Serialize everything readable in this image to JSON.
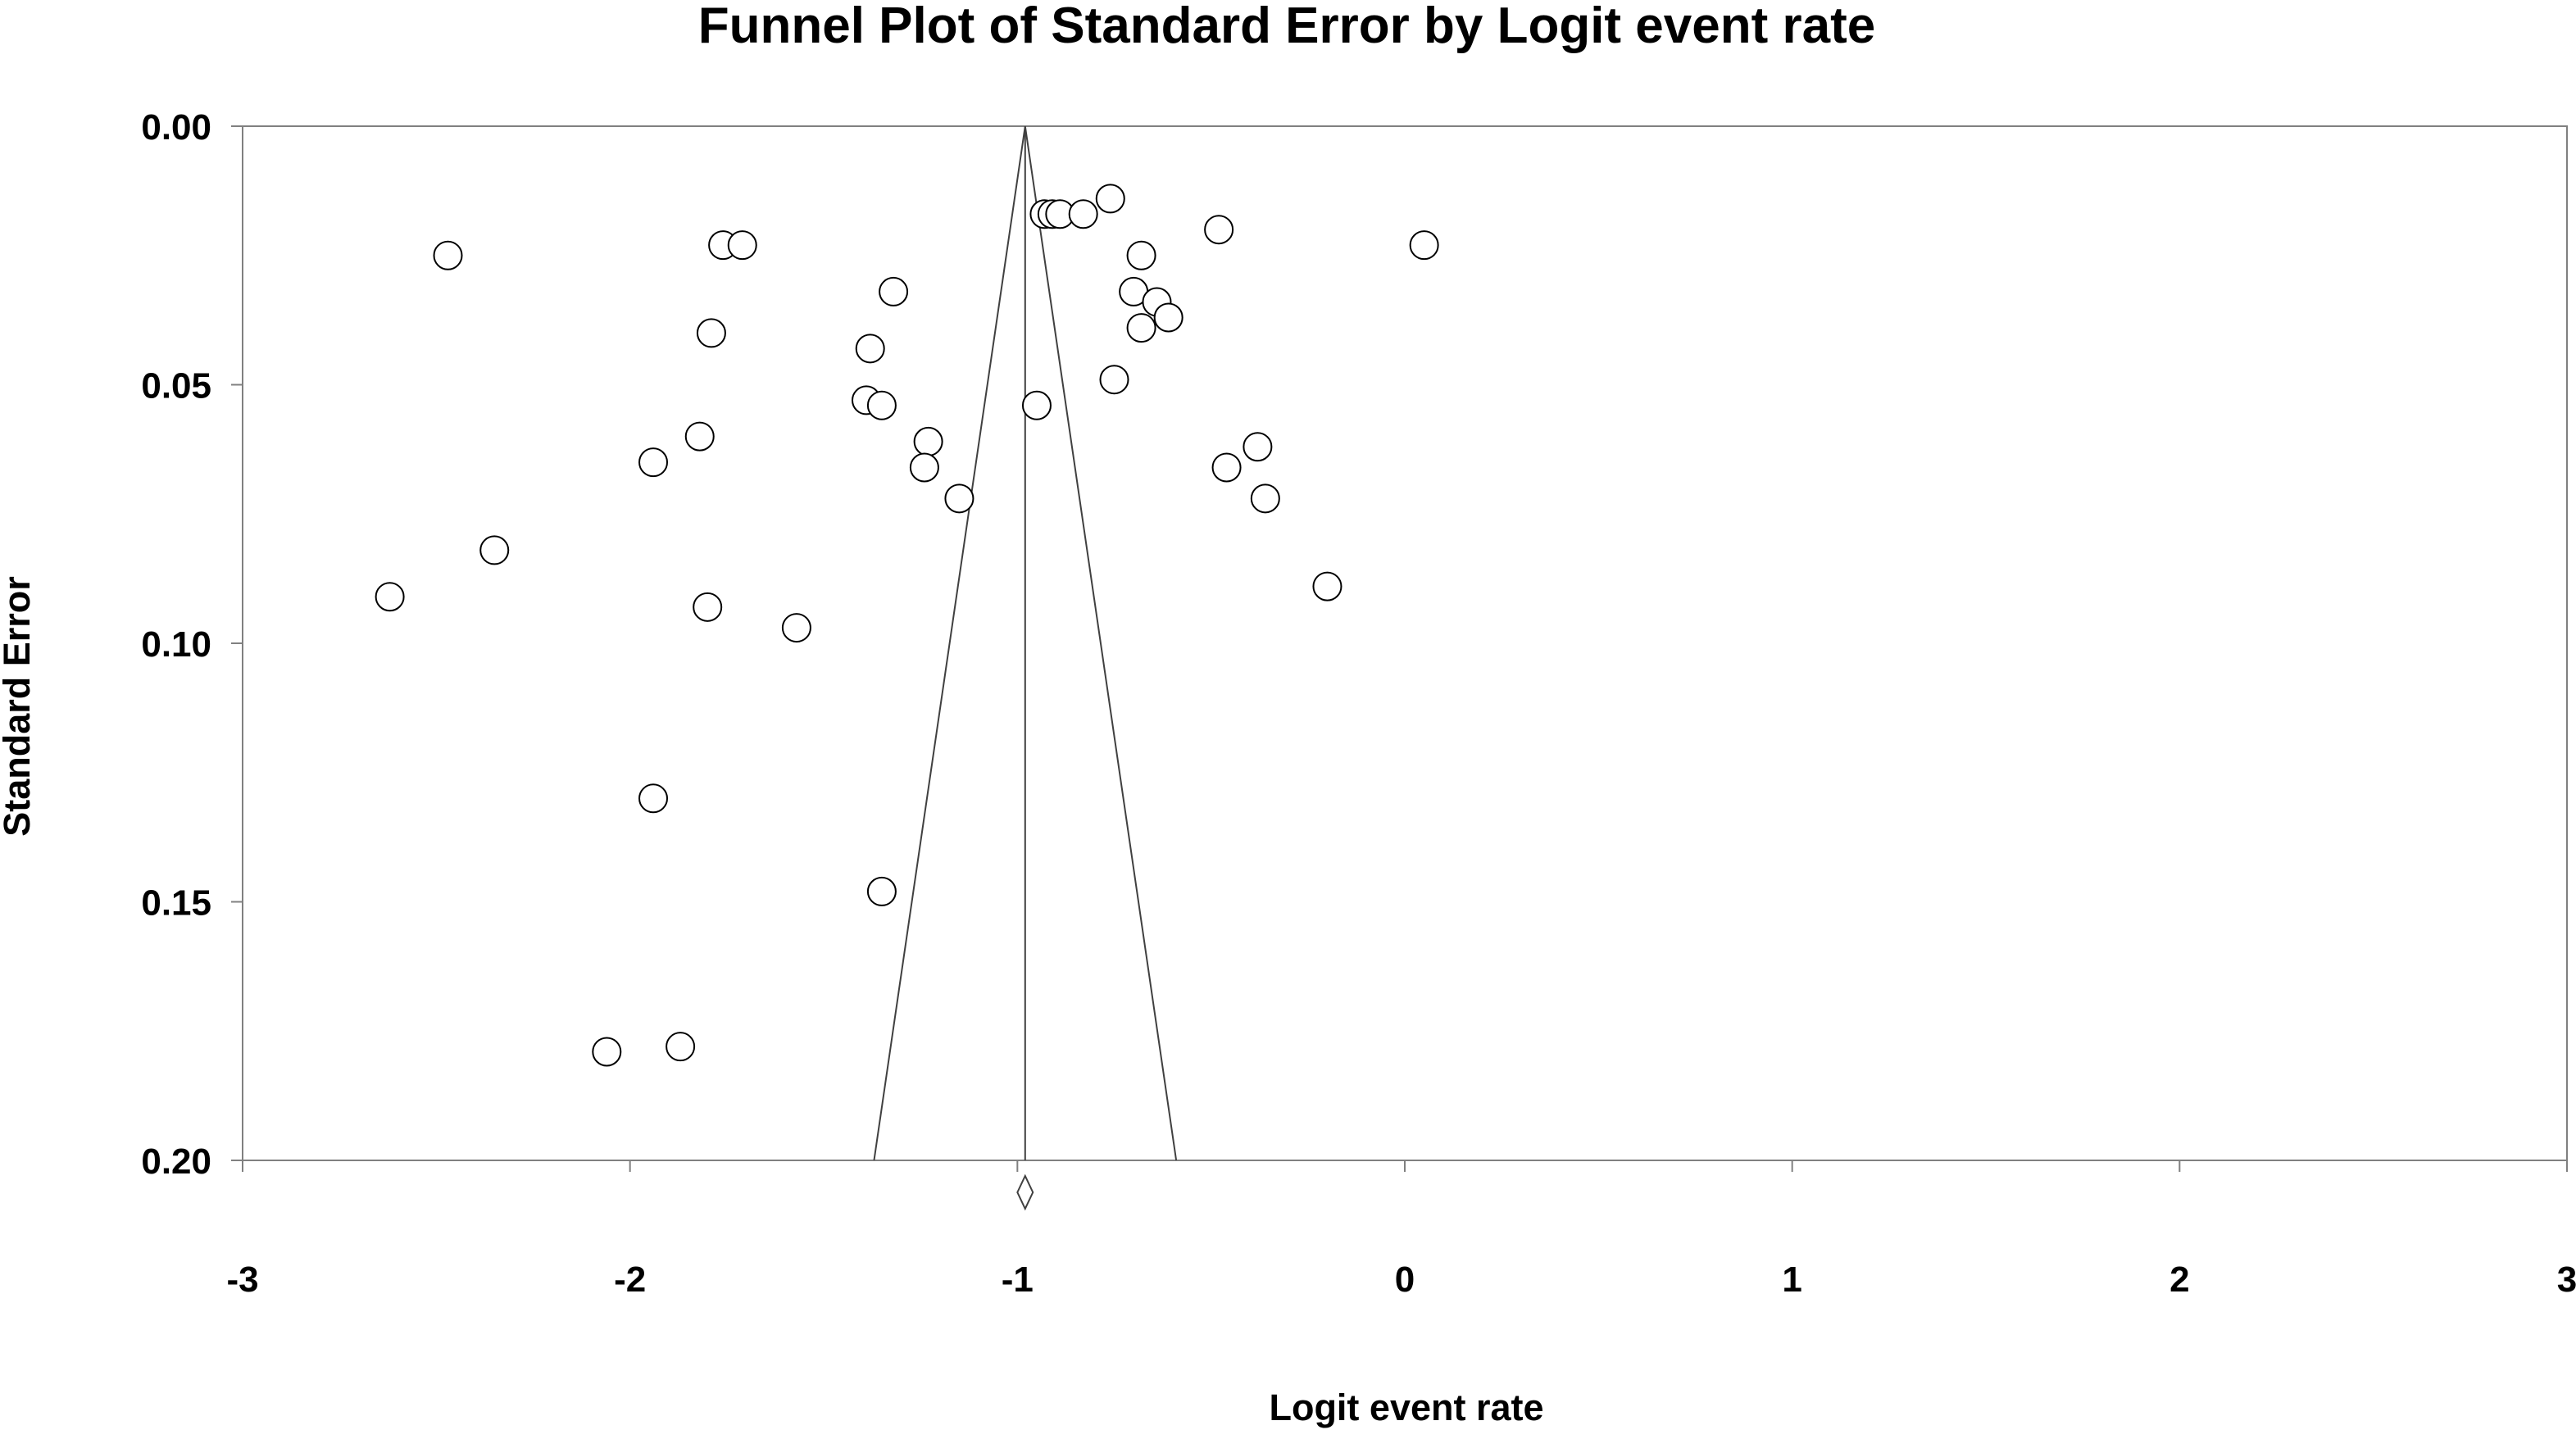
{
  "colors": {
    "background": "#ffffff",
    "axis": "#808080",
    "funnel_line": "#404040",
    "marker_stroke": "#000000",
    "marker_fill": "#ffffff",
    "text": "#000000"
  },
  "chart_data": {
    "type": "scatter",
    "title": "Funnel Plot of Standard Error by Logit event rate",
    "xlabel": "Logit event rate",
    "ylabel": "Standard Error",
    "xlim": [
      -3,
      3
    ],
    "ylim": [
      0.2,
      0
    ],
    "y_axis_inverted": true,
    "grid": false,
    "legend": "none",
    "x_ticks": [
      -3,
      -2,
      -1,
      0,
      1,
      2,
      3
    ],
    "x_tick_labels": [
      "-3",
      "-2",
      "-1",
      "0",
      "1",
      "2",
      "3"
    ],
    "y_ticks": [
      0.0,
      0.05,
      0.1,
      0.15,
      0.2
    ],
    "y_tick_labels": [
      "0.00",
      "0.05",
      "0.10",
      "0.15",
      "0.20"
    ],
    "pooled_estimate": -0.98,
    "funnel_bottom_x": [
      -1.37,
      -0.59
    ],
    "funnel_bottom_se": 0.2,
    "summary_diamond": {
      "center": -0.98,
      "lower": -1.0,
      "upper": -0.96
    },
    "points": [
      {
        "x": -2.62,
        "y": 0.091
      },
      {
        "x": -2.47,
        "y": 0.025
      },
      {
        "x": -2.35,
        "y": 0.082
      },
      {
        "x": -2.06,
        "y": 0.179
      },
      {
        "x": -1.94,
        "y": 0.065
      },
      {
        "x": -1.94,
        "y": 0.13
      },
      {
        "x": -1.87,
        "y": 0.178
      },
      {
        "x": -1.82,
        "y": 0.06
      },
      {
        "x": -1.79,
        "y": 0.04
      },
      {
        "x": -1.8,
        "y": 0.093
      },
      {
        "x": -1.76,
        "y": 0.023
      },
      {
        "x": -1.71,
        "y": 0.023
      },
      {
        "x": -1.57,
        "y": 0.097
      },
      {
        "x": -1.39,
        "y": 0.053
      },
      {
        "x": -1.38,
        "y": 0.043
      },
      {
        "x": -1.35,
        "y": 0.054
      },
      {
        "x": -1.35,
        "y": 0.148
      },
      {
        "x": -1.32,
        "y": 0.032
      },
      {
        "x": -1.23,
        "y": 0.061
      },
      {
        "x": -1.24,
        "y": 0.066
      },
      {
        "x": -1.15,
        "y": 0.072
      },
      {
        "x": -0.95,
        "y": 0.054
      },
      {
        "x": -0.93,
        "y": 0.017
      },
      {
        "x": -0.91,
        "y": 0.017
      },
      {
        "x": -0.89,
        "y": 0.017
      },
      {
        "x": -0.83,
        "y": 0.017
      },
      {
        "x": -0.76,
        "y": 0.014
      },
      {
        "x": -0.75,
        "y": 0.049
      },
      {
        "x": -0.7,
        "y": 0.032
      },
      {
        "x": -0.68,
        "y": 0.025
      },
      {
        "x": -0.68,
        "y": 0.039
      },
      {
        "x": -0.64,
        "y": 0.034
      },
      {
        "x": -0.61,
        "y": 0.037
      },
      {
        "x": -0.48,
        "y": 0.02
      },
      {
        "x": -0.46,
        "y": 0.066
      },
      {
        "x": -0.38,
        "y": 0.062
      },
      {
        "x": -0.36,
        "y": 0.072
      },
      {
        "x": -0.2,
        "y": 0.089
      },
      {
        "x": 0.05,
        "y": 0.023
      }
    ]
  }
}
